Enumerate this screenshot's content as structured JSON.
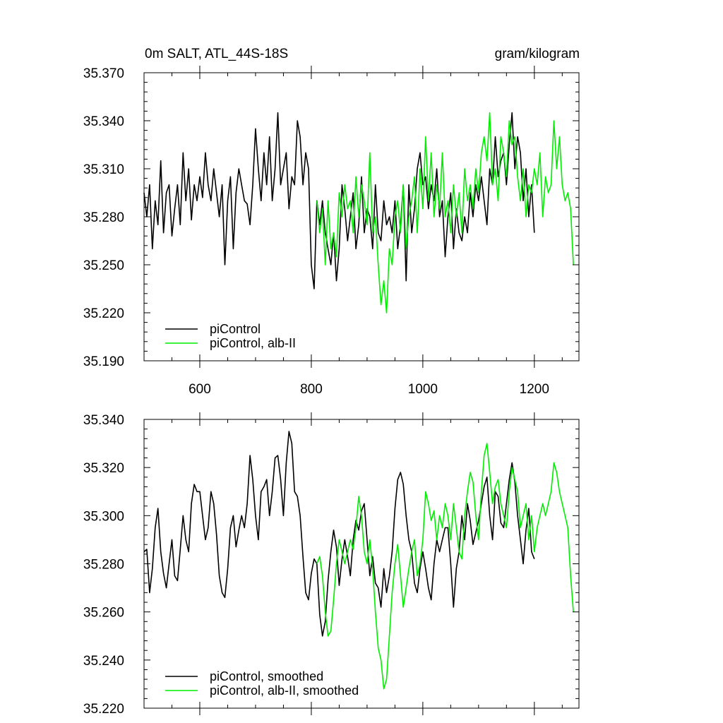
{
  "chart_data": [
    {
      "type": "line",
      "title": "0m SALT, ATL_44S-18S",
      "units": "gram/kilogram",
      "xlim": [
        500,
        1280
      ],
      "ylim": [
        35.19,
        35.37
      ],
      "x_ticks": [
        600,
        800,
        1000,
        1200
      ],
      "x_tick_labels": [
        "600",
        "800",
        "1000",
        "1200"
      ],
      "y_ticks": [
        35.19,
        35.22,
        35.25,
        35.28,
        35.31,
        35.34,
        35.37
      ],
      "y_tick_labels": [
        "35.190",
        "35.220",
        "35.250",
        "35.280",
        "35.310",
        "35.340",
        "35.370"
      ],
      "series": [
        {
          "name": "piControl",
          "color": "#000000",
          "x": [
            500,
            505,
            510,
            515,
            520,
            525,
            530,
            535,
            540,
            545,
            550,
            555,
            560,
            565,
            570,
            575,
            580,
            585,
            590,
            595,
            600,
            605,
            610,
            615,
            620,
            625,
            630,
            635,
            640,
            645,
            650,
            655,
            660,
            665,
            670,
            675,
            680,
            685,
            690,
            695,
            700,
            705,
            710,
            715,
            720,
            725,
            730,
            735,
            740,
            745,
            750,
            755,
            760,
            765,
            770,
            775,
            780,
            785,
            790,
            795,
            800,
            805,
            810,
            815,
            820,
            825,
            830,
            835,
            840,
            845,
            850,
            855,
            860,
            865,
            870,
            875,
            880,
            885,
            890,
            895,
            900,
            905,
            910,
            915,
            920,
            925,
            930,
            935,
            940,
            945,
            950,
            955,
            960,
            965,
            970,
            975,
            980,
            985,
            990,
            995,
            1000,
            1005,
            1010,
            1015,
            1020,
            1025,
            1030,
            1035,
            1040,
            1045,
            1050,
            1055,
            1060,
            1065,
            1070,
            1075,
            1080,
            1085,
            1090,
            1095,
            1100,
            1105,
            1110,
            1115,
            1120,
            1125,
            1130,
            1135,
            1140,
            1145,
            1150,
            1155,
            1160,
            1165,
            1170,
            1175,
            1180,
            1185,
            1190,
            1195,
            1200
          ],
          "values": [
            35.295,
            35.28,
            35.3,
            35.26,
            35.29,
            35.275,
            35.315,
            35.27,
            35.295,
            35.3,
            35.268,
            35.285,
            35.3,
            35.275,
            35.32,
            35.29,
            35.31,
            35.278,
            35.3,
            35.29,
            35.305,
            35.292,
            35.32,
            35.3,
            35.29,
            35.31,
            35.295,
            35.28,
            35.3,
            35.25,
            35.29,
            35.305,
            35.26,
            35.295,
            35.31,
            35.3,
            35.29,
            35.288,
            35.275,
            35.3,
            35.335,
            35.31,
            35.29,
            35.32,
            35.3,
            35.33,
            35.29,
            35.31,
            35.345,
            35.3,
            35.31,
            35.32,
            35.285,
            35.305,
            35.3,
            35.34,
            35.33,
            35.3,
            35.32,
            35.31,
            35.25,
            35.235,
            35.29,
            35.275,
            35.29,
            35.27,
            35.26,
            35.25,
            35.27,
            35.24,
            35.26,
            35.3,
            35.285,
            35.265,
            35.28,
            35.295,
            35.26,
            35.275,
            35.305,
            35.27,
            35.285,
            35.28,
            35.26,
            35.3,
            35.27,
            35.265,
            35.29,
            35.275,
            35.28,
            35.27,
            35.29,
            35.26,
            35.275,
            35.3,
            35.24,
            35.3,
            35.27,
            35.285,
            35.31,
            35.32,
            35.3,
            35.305,
            35.285,
            35.3,
            35.29,
            35.31,
            35.28,
            35.29,
            35.255,
            35.28,
            35.295,
            35.26,
            35.285,
            35.27,
            35.265,
            35.28,
            35.27,
            35.295,
            35.28,
            35.3,
            35.29,
            35.305,
            35.29,
            35.275,
            35.31,
            35.3,
            35.33,
            35.305,
            35.315,
            35.32,
            35.3,
            35.325,
            35.345,
            35.31,
            35.33,
            35.32,
            35.29,
            35.31,
            35.28,
            35.3,
            35.27
          ]
        },
        {
          "name": "piControl, alb-II",
          "color": "#00ee00",
          "x": [
            810,
            815,
            820,
            825,
            830,
            835,
            840,
            845,
            850,
            855,
            860,
            865,
            870,
            875,
            880,
            885,
            890,
            895,
            900,
            905,
            910,
            915,
            920,
            925,
            930,
            935,
            940,
            945,
            950,
            955,
            960,
            965,
            970,
            975,
            980,
            985,
            990,
            995,
            1000,
            1005,
            1010,
            1015,
            1020,
            1025,
            1030,
            1035,
            1040,
            1045,
            1050,
            1055,
            1060,
            1065,
            1070,
            1075,
            1080,
            1085,
            1090,
            1095,
            1100,
            1105,
            1110,
            1115,
            1120,
            1125,
            1130,
            1135,
            1140,
            1145,
            1150,
            1155,
            1160,
            1165,
            1170,
            1175,
            1180,
            1185,
            1190,
            1195,
            1200,
            1205,
            1210,
            1215,
            1220,
            1225,
            1230,
            1235,
            1240,
            1245,
            1250,
            1255,
            1260,
            1265,
            1270
          ],
          "values": [
            35.29,
            35.27,
            35.285,
            35.25,
            35.29,
            35.26,
            35.27,
            35.255,
            35.295,
            35.28,
            35.3,
            35.285,
            35.29,
            35.27,
            35.305,
            35.28,
            35.3,
            35.29,
            35.275,
            35.32,
            35.27,
            35.28,
            35.25,
            35.225,
            35.24,
            35.22,
            35.26,
            35.25,
            35.28,
            35.29,
            35.27,
            35.3,
            35.26,
            35.28,
            35.29,
            35.305,
            35.27,
            35.31,
            35.285,
            35.33,
            35.29,
            35.32,
            35.28,
            35.3,
            35.285,
            35.32,
            35.28,
            35.29,
            35.27,
            35.3,
            35.28,
            35.295,
            35.27,
            35.31,
            35.29,
            35.3,
            35.285,
            35.31,
            35.295,
            35.32,
            35.33,
            35.315,
            35.345,
            35.3,
            35.31,
            35.29,
            35.33,
            35.32,
            35.305,
            35.34,
            35.325,
            35.33,
            35.305,
            35.29,
            35.31,
            35.28,
            35.3,
            35.295,
            35.31,
            35.3,
            35.32,
            35.28,
            35.305,
            35.295,
            35.3,
            35.34,
            35.31,
            35.33,
            35.3,
            35.29,
            35.295,
            35.285,
            35.25
          ]
        }
      ],
      "legend": [
        "piControl",
        "piControl, alb-II"
      ],
      "legend_position": "bottom-left"
    },
    {
      "type": "line",
      "xlim": [
        500,
        1280
      ],
      "ylim": [
        35.22,
        35.34
      ],
      "x_ticks": [
        600,
        800,
        1000,
        1200
      ],
      "y_ticks": [
        35.22,
        35.24,
        35.26,
        35.28,
        35.3,
        35.32,
        35.34
      ],
      "y_tick_labels": [
        "35.220",
        "35.240",
        "35.260",
        "35.280",
        "35.300",
        "35.320",
        "35.340"
      ],
      "series": [
        {
          "name": "piControl, smoothed",
          "color": "#000000",
          "x": [
            500,
            505,
            510,
            515,
            520,
            525,
            530,
            535,
            540,
            545,
            550,
            555,
            560,
            565,
            570,
            575,
            580,
            585,
            590,
            595,
            600,
            605,
            610,
            615,
            620,
            625,
            630,
            635,
            640,
            645,
            650,
            655,
            660,
            665,
            670,
            675,
            680,
            685,
            690,
            695,
            700,
            705,
            710,
            715,
            720,
            725,
            730,
            735,
            740,
            745,
            750,
            755,
            760,
            765,
            770,
            775,
            780,
            785,
            790,
            795,
            800,
            805,
            810,
            815,
            820,
            825,
            830,
            835,
            840,
            845,
            850,
            855,
            860,
            865,
            870,
            875,
            880,
            885,
            890,
            895,
            900,
            905,
            910,
            915,
            920,
            925,
            930,
            935,
            940,
            945,
            950,
            955,
            960,
            965,
            970,
            975,
            980,
            985,
            990,
            995,
            1000,
            1005,
            1010,
            1015,
            1020,
            1025,
            1030,
            1035,
            1040,
            1045,
            1050,
            1055,
            1060,
            1065,
            1070,
            1075,
            1080,
            1085,
            1090,
            1095,
            1100,
            1105,
            1110,
            1115,
            1120,
            1125,
            1130,
            1135,
            1140,
            1145,
            1150,
            1155,
            1160,
            1165,
            1170,
            1175,
            1180,
            1185,
            1190,
            1195,
            1200
          ],
          "values": [
            35.285,
            35.286,
            35.268,
            35.278,
            35.295,
            35.303,
            35.285,
            35.276,
            35.27,
            35.28,
            35.29,
            35.275,
            35.273,
            35.286,
            35.3,
            35.29,
            35.285,
            35.305,
            35.313,
            35.31,
            35.31,
            35.3,
            35.29,
            35.295,
            35.31,
            35.305,
            35.292,
            35.275,
            35.268,
            35.266,
            35.278,
            35.295,
            35.3,
            35.287,
            35.294,
            35.3,
            35.295,
            35.305,
            35.325,
            35.315,
            35.3,
            35.29,
            35.31,
            35.312,
            35.315,
            35.3,
            35.31,
            35.324,
            35.325,
            35.315,
            35.3,
            35.322,
            35.335,
            35.33,
            35.31,
            35.308,
            35.3,
            35.283,
            35.268,
            35.265,
            35.276,
            35.282,
            35.28,
            35.259,
            35.25,
            35.256,
            35.273,
            35.285,
            35.294,
            35.287,
            35.271,
            35.282,
            35.29,
            35.283,
            35.275,
            35.29,
            35.298,
            35.294,
            35.302,
            35.305,
            35.29,
            35.275,
            35.283,
            35.272,
            35.27,
            35.262,
            35.278,
            35.268,
            35.275,
            35.285,
            35.303,
            35.315,
            35.318,
            35.313,
            35.3,
            35.29,
            35.285,
            35.272,
            35.268,
            35.278,
            35.285,
            35.278,
            35.27,
            35.265,
            35.28,
            35.29,
            35.285,
            35.29,
            35.295,
            35.295,
            35.28,
            35.262,
            35.278,
            35.285,
            35.3,
            35.29,
            35.305,
            35.298,
            35.288,
            35.293,
            35.298,
            35.305,
            35.312,
            35.316,
            35.3,
            35.29,
            35.31,
            35.308,
            35.297,
            35.295,
            35.305,
            35.315,
            35.322,
            35.314,
            35.3,
            35.29,
            35.28,
            35.294,
            35.303,
            35.285,
            35.282
          ]
        },
        {
          "name": "piControl, alb-II, smoothed",
          "color": "#00ee00",
          "x": [
            810,
            815,
            820,
            825,
            830,
            835,
            840,
            845,
            850,
            855,
            860,
            865,
            870,
            875,
            880,
            885,
            890,
            895,
            900,
            905,
            910,
            915,
            920,
            925,
            930,
            935,
            940,
            945,
            950,
            955,
            960,
            965,
            970,
            975,
            980,
            985,
            990,
            995,
            1000,
            1005,
            1010,
            1015,
            1020,
            1025,
            1030,
            1035,
            1040,
            1045,
            1050,
            1055,
            1060,
            1065,
            1070,
            1075,
            1080,
            1085,
            1090,
            1095,
            1100,
            1105,
            1110,
            1115,
            1120,
            1125,
            1130,
            1135,
            1140,
            1145,
            1150,
            1155,
            1160,
            1165,
            1170,
            1175,
            1180,
            1185,
            1190,
            1195,
            1200,
            1205,
            1210,
            1215,
            1220,
            1225,
            1230,
            1235,
            1240,
            1245,
            1250,
            1255,
            1260,
            1265,
            1270
          ],
          "values": [
            35.28,
            35.283,
            35.275,
            35.26,
            35.25,
            35.252,
            35.265,
            35.28,
            35.29,
            35.285,
            35.28,
            35.285,
            35.29,
            35.286,
            35.295,
            35.308,
            35.3,
            35.285,
            35.28,
            35.29,
            35.278,
            35.26,
            35.245,
            35.24,
            35.228,
            35.232,
            35.25,
            35.268,
            35.28,
            35.288,
            35.275,
            35.262,
            35.27,
            35.278,
            35.285,
            35.29,
            35.275,
            35.28,
            35.29,
            35.31,
            35.305,
            35.298,
            35.302,
            35.29,
            35.3,
            35.295,
            35.305,
            35.3,
            35.29,
            35.305,
            35.295,
            35.285,
            35.282,
            35.3,
            35.31,
            35.318,
            35.314,
            35.3,
            35.29,
            35.31,
            35.325,
            35.33,
            35.318,
            35.305,
            35.312,
            35.315,
            35.305,
            35.3,
            35.295,
            35.31,
            35.32,
            35.315,
            35.31,
            35.295,
            35.3,
            35.305,
            35.29,
            35.3,
            35.285,
            35.295,
            35.3,
            35.305,
            35.3,
            35.305,
            35.31,
            35.322,
            35.318,
            35.31,
            35.305,
            35.3,
            35.295,
            35.275,
            35.26
          ]
        }
      ],
      "legend": [
        "piControl, smoothed",
        "piControl, alb-II, smoothed"
      ],
      "legend_position": "bottom-left"
    }
  ]
}
